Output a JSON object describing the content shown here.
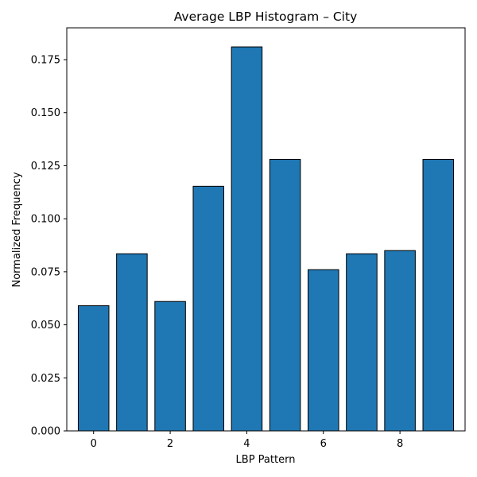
{
  "chart_data": {
    "type": "bar",
    "title": "Average LBP Histogram – City",
    "xlabel": "LBP Pattern",
    "ylabel": "Normalized Frequency",
    "categories": [
      0,
      1,
      2,
      3,
      4,
      5,
      6,
      7,
      8,
      9
    ],
    "values": [
      0.059,
      0.0835,
      0.061,
      0.1153,
      0.181,
      0.128,
      0.076,
      0.0835,
      0.085,
      0.128
    ],
    "xlim": [
      -0.7,
      9.7
    ],
    "ylim": [
      0,
      0.19
    ],
    "xticks": [
      0,
      2,
      4,
      6,
      8
    ],
    "xtick_labels": [
      "0",
      "2",
      "4",
      "6",
      "8"
    ],
    "yticks": [
      0,
      0.025,
      0.05,
      0.075,
      0.1,
      0.125,
      0.15,
      0.175
    ],
    "ytick_labels": [
      "0.000",
      "0.025",
      "0.050",
      "0.075",
      "0.100",
      "0.125",
      "0.150",
      "0.175"
    ],
    "bar_color": "#1f77b4",
    "bar_edge_color": "#000000",
    "grid": false,
    "legend": "none"
  }
}
